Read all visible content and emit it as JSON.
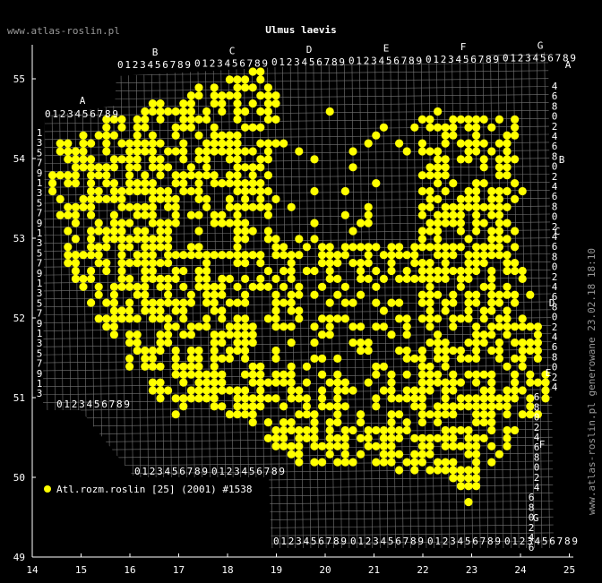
{
  "header": {
    "site": "www.atlas-roslin.pl",
    "title": "Ulmus laevis"
  },
  "map": {
    "x_labels": [
      "14",
      "15",
      "16",
      "17",
      "18",
      "19",
      "20",
      "21",
      "22",
      "23",
      "24",
      "25"
    ],
    "y_labels": [
      "49",
      "50",
      "51",
      "52",
      "53",
      "54",
      "55"
    ],
    "grid_letters": [
      "A",
      "B",
      "C",
      "D",
      "E",
      "F",
      "G"
    ],
    "grid_digits": "0123456789",
    "row_digits": [
      "1",
      "3",
      "5",
      "7",
      "9"
    ],
    "right_digits": [
      "4",
      "6",
      "8",
      "0",
      "2"
    ]
  },
  "legend": {
    "label": "Atl.rozm.roslin [25] (2001) #1538"
  },
  "footer": {
    "generated": "www.atlas-roslin.pl generowane 23.02.18 18:10"
  }
}
